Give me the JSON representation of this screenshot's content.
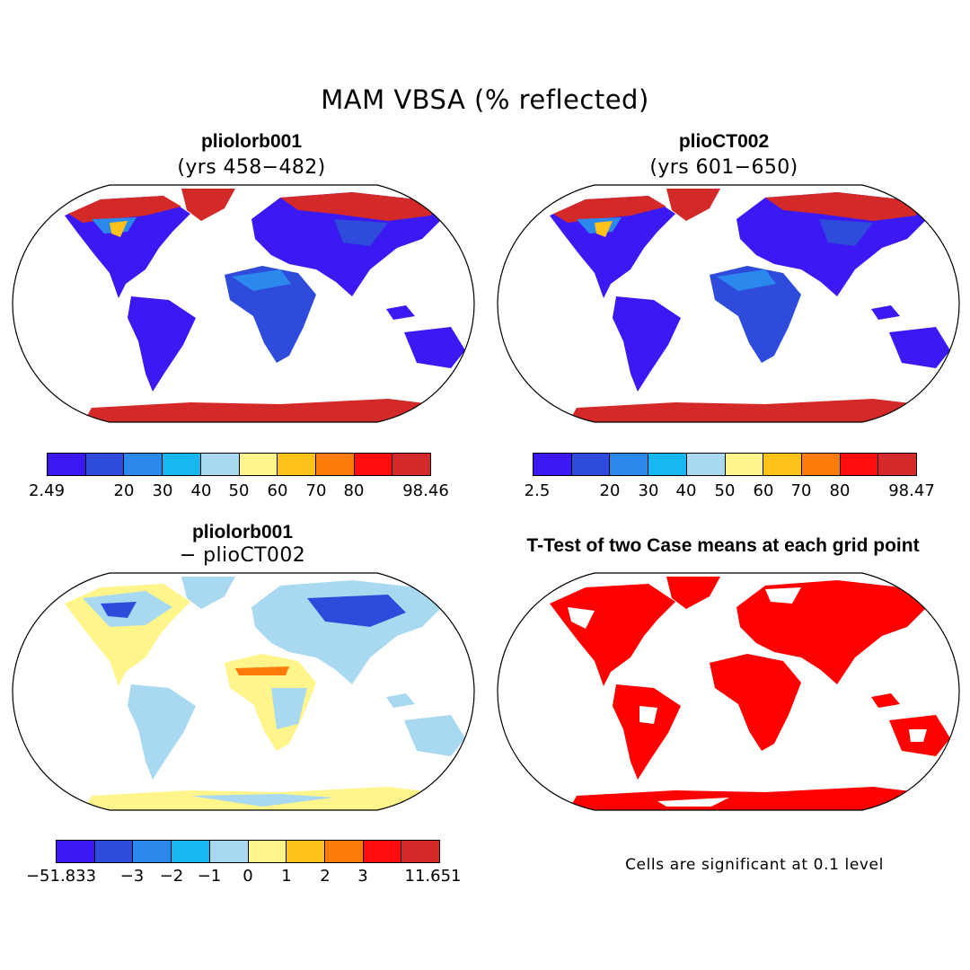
{
  "figure": {
    "title": "MAM VBSA (% reflected)"
  },
  "colors": {
    "scale": [
      "#3b19f2",
      "#2f4bdb",
      "#2b88ec",
      "#17b7f3",
      "#a8d9f0",
      "#fff58a",
      "#ffc21a",
      "#ff7b0c",
      "#ff0d0d",
      "#d42929"
    ],
    "land_outline": "#000000",
    "significance": "#ff0000"
  },
  "panels": [
    {
      "title": "pliolorb001",
      "subtitle": "(yrs 458−482)",
      "colorbar": {
        "ticks": [
          "2.49",
          "20",
          "30",
          "40",
          "50",
          "60",
          "70",
          "80",
          "98.46"
        ]
      }
    },
    {
      "title": "plioCT002",
      "subtitle": "(yrs 601−650)",
      "colorbar": {
        "ticks": [
          "2.5",
          "20",
          "30",
          "40",
          "50",
          "60",
          "70",
          "80",
          "98.47"
        ]
      }
    },
    {
      "title": "pliolorb001",
      "subtitle": "− plioCT002",
      "colorbar": {
        "ticks": [
          "−51.833",
          "−3",
          "−2",
          "−1",
          "0",
          "1",
          "2",
          "3",
          "11.651"
        ]
      }
    },
    {
      "title": "T-Test of two Case means at each grid point",
      "note": "Cells are significant at 0.1 level"
    }
  ]
}
